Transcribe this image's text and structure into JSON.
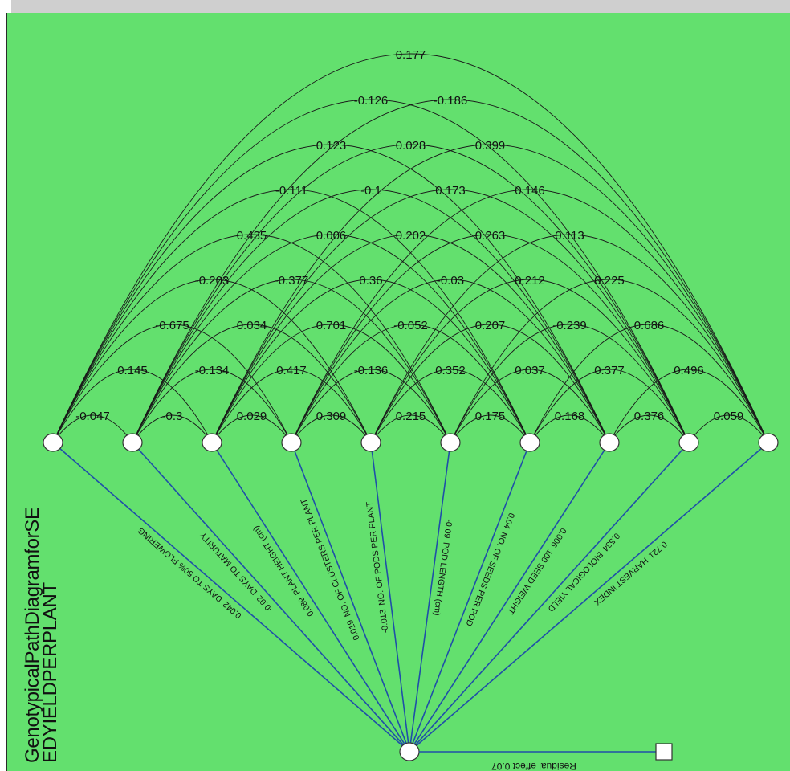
{
  "diagram_title": [
    "GenotypicalPathDiagramforSE",
    "EDYIELDPERPLANT"
  ],
  "residual_label": "Residual effect 0.07",
  "colors": {
    "background": "#63e06e",
    "arc": "#1a1a1a",
    "path": "#1f4fa8",
    "node": "#ffffff"
  },
  "traits": [
    {
      "name": "DAYS TO 50% FLOWERING",
      "direct_effect": "0.042"
    },
    {
      "name": "DAYS TO MATURITY",
      "direct_effect": "-0.02"
    },
    {
      "name": "PLANT HEIGHT (cm)",
      "direct_effect": "0.089"
    },
    {
      "name": "NO. OF CLUSTERS PER PLANT",
      "direct_effect": "0.019"
    },
    {
      "name": "NO. OF PODS PER PLANT",
      "direct_effect": "-0.013"
    },
    {
      "name": "POD LENGTH (cm)",
      "direct_effect": "-0.09"
    },
    {
      "name": "NO. OF SEEDS PER POD",
      "direct_effect": "0.04"
    },
    {
      "name": "100 SEED WEIGHT",
      "direct_effect": "0.006"
    },
    {
      "name": "BIOLOGICAL YIELD",
      "direct_effect": "0.534"
    },
    {
      "name": "HARVEST INDEX",
      "direct_effect": "0.721"
    }
  ],
  "correlations": [
    [
      "-0.047",
      "-0.3",
      "0.029",
      "0.309",
      "0.215",
      "0.175",
      "0.168",
      "0.376",
      "0.059"
    ],
    [
      "0.145",
      "-0.134",
      "0.417",
      "-0.136",
      "0.352",
      "0.037",
      "0.377",
      "0.496"
    ],
    [
      "-0.675",
      "0.034",
      "0.701",
      "-0.052",
      "0.207",
      "-0.239",
      "0.686"
    ],
    [
      "-0.203",
      "-0.377",
      "0.36",
      "-0.03",
      "0.212",
      "0.225"
    ],
    [
      "0.435",
      "0.006",
      "0.202",
      "0.263",
      "0.113"
    ],
    [
      "-0.111",
      "-0.1",
      "0.173",
      "0.146"
    ],
    [
      "0.123",
      "0.028",
      "0.399"
    ],
    [
      "-0.126",
      "-0.186"
    ],
    [
      "0.177"
    ]
  ]
}
